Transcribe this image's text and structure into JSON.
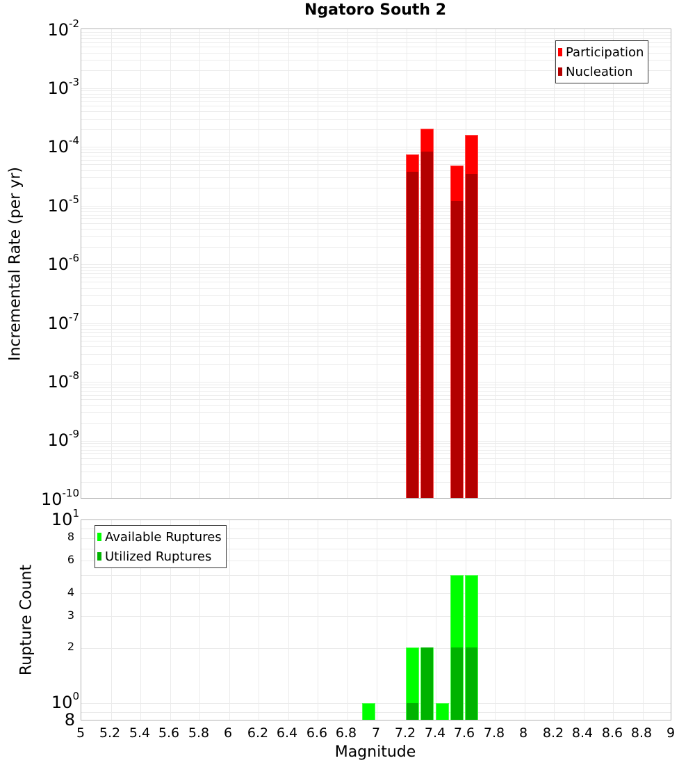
{
  "chart_data": [
    {
      "type": "bar",
      "title": "Ngatoro South 2",
      "xlabel": "Magnitude",
      "ylabel": "Incremental Rate (per yr)",
      "yscale": "log",
      "ylim": [
        1e-10,
        0.01
      ],
      "xlim": [
        5,
        9
      ],
      "grid": true,
      "legend_position": "top-right",
      "x": [
        7.25,
        7.35,
        7.55,
        7.65
      ],
      "series": [
        {
          "name": "Participation",
          "color": "#ff0000",
          "values": [
            7.3e-05,
            0.00019,
            4.5e-05,
            0.00015
          ]
        },
        {
          "name": "Nucleation",
          "color": "#b30000",
          "values": [
            3.6e-05,
            8.1e-05,
            1.2e-05,
            3.3e-05
          ]
        }
      ],
      "y_tick_labels": [
        "10^-2",
        "10^-3",
        "10^-4",
        "10^-5",
        "10^-6",
        "10^-7",
        "10^-8",
        "10^-9",
        "10^-10"
      ]
    },
    {
      "type": "bar",
      "title": "",
      "xlabel": "Magnitude",
      "ylabel": "Rupture Count",
      "yscale": "log",
      "ylim": [
        0.8,
        10
      ],
      "xlim": [
        5,
        9
      ],
      "grid": true,
      "legend_position": "top-left",
      "x": [
        6.95,
        7.25,
        7.35,
        7.45,
        7.55,
        7.65
      ],
      "series": [
        {
          "name": "Available Ruptures",
          "color": "#00ff00",
          "values": [
            1,
            2,
            2,
            1,
            5,
            5
          ]
        },
        {
          "name": "Utilized Ruptures",
          "color": "#00b300",
          "values": [
            0,
            1,
            2,
            0,
            2,
            2
          ]
        }
      ],
      "y_tick_labels": [
        "8",
        "10^0",
        "2",
        "3",
        "4",
        "6",
        "8",
        "10^1"
      ]
    }
  ],
  "title": "Ngatoro South 2",
  "top": {
    "ylabel": "Incremental Rate (per yr)",
    "legend": [
      {
        "label": "Participation",
        "color": "#ff0000"
      },
      {
        "label": "Nucleation",
        "color": "#b30000"
      }
    ],
    "yticks": [
      {
        "base": "10",
        "exp": "-2"
      },
      {
        "base": "10",
        "exp": "-3"
      },
      {
        "base": "10",
        "exp": "-4"
      },
      {
        "base": "10",
        "exp": "-5"
      },
      {
        "base": "10",
        "exp": "-6"
      },
      {
        "base": "10",
        "exp": "-7"
      },
      {
        "base": "10",
        "exp": "-8"
      },
      {
        "base": "10",
        "exp": "-9"
      },
      {
        "base": "10",
        "exp": "-10"
      }
    ]
  },
  "bottom": {
    "ylabel": "Rupture Count",
    "legend": [
      {
        "label": "Available Ruptures",
        "color": "#00ff00"
      },
      {
        "label": "Utilized Ruptures",
        "color": "#00b300"
      }
    ],
    "ytick_big": [
      {
        "base": "10",
        "exp": "1"
      },
      {
        "base": "10",
        "exp": "0"
      }
    ],
    "ytick_small": [
      "8",
      "6",
      "4",
      "3",
      "2"
    ],
    "ytick_bottom": "8"
  },
  "xaxis": {
    "label": "Magnitude",
    "ticks": [
      "5",
      "5.2",
      "5.4",
      "5.6",
      "5.8",
      "6",
      "6.2",
      "6.4",
      "6.6",
      "6.8",
      "7",
      "7.2",
      "7.4",
      "7.6",
      "7.8",
      "8",
      "8.2",
      "8.4",
      "8.6",
      "8.8",
      "9"
    ]
  }
}
